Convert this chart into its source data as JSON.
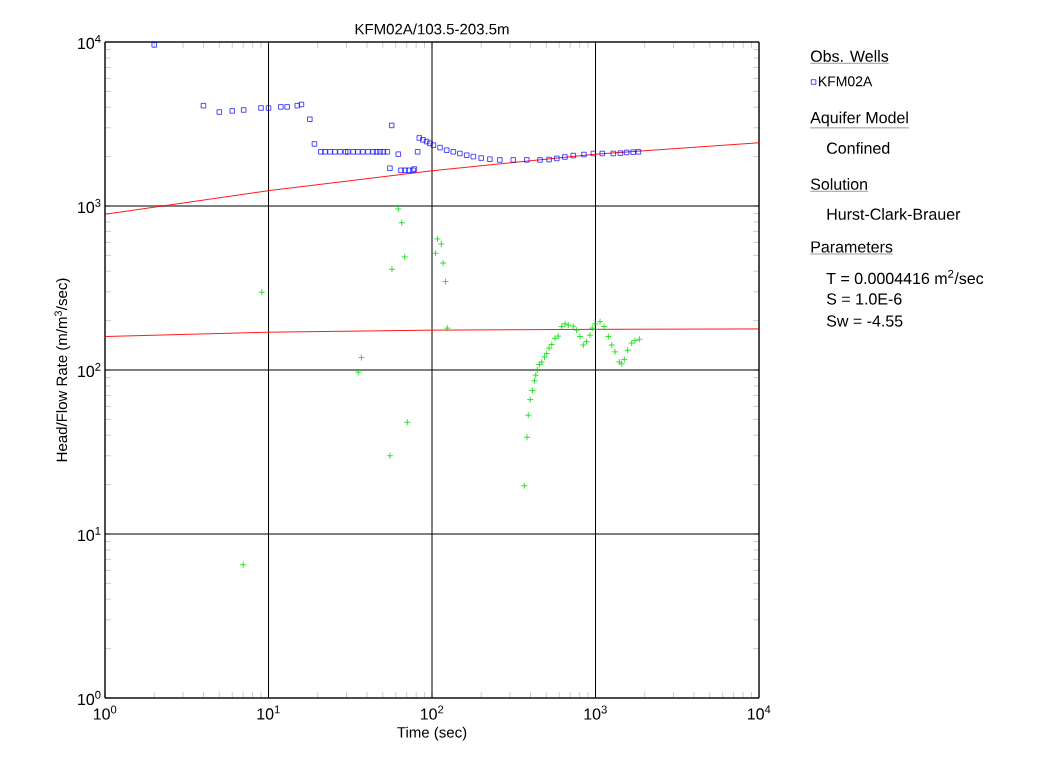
{
  "chart_data": {
    "type": "scatter",
    "title": "KFM02A/103.5-203.5m",
    "xlabel": "Time (sec)",
    "ylabel": "Head/Flow Rate (m/m$^{3}$/sec)",
    "log": "xy",
    "grid": true,
    "legend": "right",
    "legend_title": "Obs. Wells",
    "xlim": [
      1,
      10000
    ],
    "ylim": [
      1,
      10000
    ],
    "xticks": [
      {
        "value": 1,
        "label": "10$^{0}$"
      },
      {
        "value": 10,
        "label": "10$^{1}$"
      },
      {
        "value": 100,
        "label": "10$^{2}$"
      },
      {
        "value": 1000,
        "label": "10$^{3}$"
      },
      {
        "value": 10000,
        "label": "10$^{4}$"
      }
    ],
    "yticks": [
      {
        "value": 1,
        "label": "10$^{0}$"
      },
      {
        "value": 10,
        "label": "10$^{1}$"
      },
      {
        "value": 100,
        "label": "10$^{2}$"
      },
      {
        "value": 1000,
        "label": "10$^{3}$"
      },
      {
        "value": 10000,
        "label": "10$^{4}$"
      }
    ],
    "series": [
      {
        "name": "KFM02A",
        "marker": "square",
        "color": "#0000ff",
        "x": [
          2.0,
          4.0,
          5.0,
          6.0,
          7.05,
          9.0,
          10,
          11.9,
          13.0,
          15.0,
          15.9,
          17.9,
          19.1,
          20.9,
          22.2,
          23.8,
          25.5,
          27.4,
          29.6,
          30.6,
          32.9,
          35.2,
          37.8,
          40.6,
          43.6,
          45.8,
          48.1,
          50.4,
          53.3,
          55.3,
          56.7,
          62.2,
          64.6,
          68.4,
          72.3,
          76.6,
          78,
          81.7,
          83.6,
          88,
          92.7,
          97,
          102,
          112,
          123,
          135,
          148,
          163,
          179,
          200,
          226,
          260,
          314,
          380,
          458,
          520,
          580,
          650,
          731,
          850,
          970,
          1100,
          1285,
          1420,
          1550,
          1700,
          1830
        ],
        "values": [
          9600,
          4090,
          3740,
          3800,
          3850,
          3960,
          3960,
          4020,
          4020,
          4090,
          4160,
          3380,
          2390,
          2140,
          2140,
          2140,
          2140,
          2140,
          2140,
          2140,
          2140,
          2140,
          2140,
          2140,
          2140,
          2140,
          2140,
          2140,
          2140,
          1700,
          3100,
          2070,
          1650,
          1650,
          1650,
          1650,
          1680,
          2140,
          2600,
          2530,
          2470,
          2410,
          2350,
          2270,
          2190,
          2140,
          2090,
          2040,
          2000,
          1960,
          1930,
          1910,
          1910,
          1910,
          1910,
          1920,
          1950,
          1990,
          2030,
          2060,
          2090,
          2090,
          2090,
          2100,
          2120,
          2130,
          2140
        ]
      },
      {
        "marker": "cross",
        "color": "#00dd00",
        "x": [
          7.0,
          9.1,
          35.4,
          37.0,
          55.3,
          56.9,
          62.2,
          65.3,
          68.1,
          70.6,
          105,
          108,
          114,
          117,
          121,
          124,
          367,
          381,
          388,
          399,
          411,
          423,
          431,
          441,
          453,
          469,
          487,
          503,
          520,
          540,
          565,
          592,
          621,
          651,
          682,
          731,
          767,
          804,
          842,
          883,
          925,
          955,
          993,
          1066,
          1128,
          1198,
          1256,
          1316,
          1398,
          1445,
          1500,
          1573,
          1665,
          1745,
          1855
        ],
        "values": [
          6.5,
          298,
          97,
          119,
          30,
          411,
          959,
          790,
          489,
          48,
          515,
          630,
          587,
          449,
          346,
          180,
          19.7,
          38.9,
          53,
          66,
          75,
          86,
          93,
          100,
          108,
          112,
          120,
          126,
          136,
          143,
          156,
          161,
          184,
          191,
          188,
          185,
          175,
          160,
          142,
          149,
          163,
          180,
          191,
          197,
          184,
          160,
          142,
          129,
          112,
          109,
          116,
          132,
          146,
          151,
          154
        ]
      },
      {
        "type": "line",
        "marker": "none",
        "color": "#ff0000",
        "x": [
          1,
          10,
          100,
          1000,
          10000
        ],
        "values": [
          890,
          1240,
          1640,
          2070,
          2430
        ]
      },
      {
        "type": "line",
        "marker": "none",
        "color": "#ff0000",
        "x": [
          1,
          10,
          100,
          1000,
          10000
        ],
        "values": [
          160,
          170,
          175,
          177,
          178
        ]
      }
    ],
    "annotations": [
      "Aquifer Model",
      "Confined",
      "Solution",
      "Hurst-Clark-Brauer",
      "Parameters",
      "T    = 0.0004416 m$^{2}$/sec",
      "S    = 1.0E-6",
      "Sw = -4.55"
    ]
  }
}
